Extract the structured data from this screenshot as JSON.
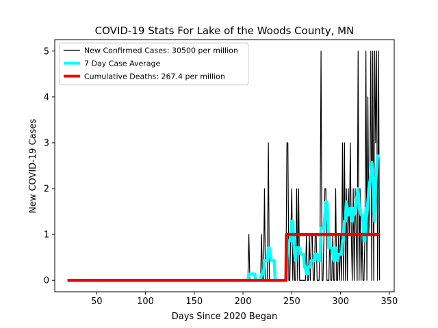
{
  "chart_data": {
    "type": "line",
    "title": "COVID-19 Stats For Lake of the Woods County, MN",
    "xlabel": "Days Since 2020 Began",
    "ylabel": "New COVID-19 Cases",
    "xlim": [
      7,
      355
    ],
    "ylim": [
      -0.25,
      5.25
    ],
    "xticks": [
      50,
      100,
      150,
      200,
      250,
      300,
      350
    ],
    "yticks": [
      0,
      1,
      2,
      3,
      4,
      5
    ],
    "grid": false,
    "legend_position": "top-left",
    "series": [
      {
        "name": "New Confirmed Cases: 30500 per million",
        "color": "#000000",
        "x": [
          205,
          206,
          207,
          208,
          209,
          210,
          211,
          212,
          213,
          214,
          215,
          216,
          217,
          218,
          219,
          220,
          221,
          222,
          223,
          224,
          225,
          226,
          227,
          228,
          229,
          230,
          231,
          232,
          233,
          234,
          235,
          236,
          237,
          238,
          239,
          240,
          241,
          242,
          243,
          244,
          245,
          246,
          247,
          248,
          249,
          250,
          251,
          252,
          253,
          254,
          255,
          256,
          257,
          258,
          259,
          260,
          261,
          262,
          263,
          264,
          265,
          266,
          267,
          268,
          269,
          270,
          271,
          272,
          273,
          274,
          275,
          276,
          277,
          278,
          279,
          280,
          281,
          282,
          283,
          284,
          285,
          286,
          287,
          288,
          289,
          290,
          291,
          292,
          293,
          294,
          295,
          296,
          297,
          298,
          299,
          300,
          301,
          302,
          303,
          304,
          305,
          306,
          307,
          308,
          309,
          310,
          311,
          312,
          313,
          314,
          315,
          316,
          317,
          318,
          319,
          320,
          321,
          322,
          323,
          324,
          325,
          326,
          327,
          328,
          329,
          330,
          331,
          332,
          333,
          334,
          335,
          336,
          337,
          338,
          339,
          340
        ],
        "y": [
          0,
          1,
          0,
          0,
          0,
          0,
          0,
          0,
          0,
          0,
          0,
          0,
          0,
          0,
          1,
          0,
          0,
          2,
          0,
          0,
          0,
          3,
          0,
          0,
          0,
          0,
          0,
          0,
          0,
          0,
          0,
          0,
          0,
          0,
          0,
          0,
          0,
          0,
          0,
          0,
          3,
          3,
          0,
          0,
          1,
          2,
          0,
          1,
          0,
          0,
          2,
          0,
          2,
          0,
          0,
          0,
          0,
          0,
          0,
          0,
          1,
          0,
          0,
          1,
          0,
          1,
          1,
          0,
          0,
          1,
          1,
          0,
          0,
          0,
          1,
          5,
          0,
          0,
          1,
          2,
          2,
          0,
          0,
          0,
          1,
          0,
          0,
          1,
          0,
          0,
          2,
          0,
          0,
          1,
          0,
          1,
          0,
          3,
          0,
          3,
          0,
          2,
          0,
          2,
          1,
          3,
          1,
          0,
          2,
          0,
          2,
          1,
          0,
          5,
          0,
          2,
          0,
          1,
          0,
          0,
          1,
          5,
          0,
          4,
          1,
          2,
          5,
          0,
          5,
          0,
          5,
          3,
          5,
          0,
          5,
          0
        ]
      },
      {
        "name": "7 Day Case Average",
        "color": "#00ffff",
        "x": [
          205,
          206,
          207,
          208,
          209,
          210,
          211,
          212,
          213,
          214,
          215,
          216,
          217,
          218,
          219,
          220,
          221,
          222,
          223,
          224,
          225,
          226,
          227,
          228,
          229,
          230,
          231,
          232,
          233,
          234,
          235,
          236,
          237,
          238,
          239,
          240,
          241,
          242,
          243,
          244,
          245,
          246,
          247,
          248,
          249,
          250,
          251,
          252,
          253,
          254,
          255,
          256,
          257,
          258,
          259,
          260,
          261,
          262,
          263,
          264,
          265,
          266,
          267,
          268,
          269,
          270,
          271,
          272,
          273,
          274,
          275,
          276,
          277,
          278,
          279,
          280,
          281,
          282,
          283,
          284,
          285,
          286,
          287,
          288,
          289,
          290,
          291,
          292,
          293,
          294,
          295,
          296,
          297,
          298,
          299,
          300,
          301,
          302,
          303,
          304,
          305,
          306,
          307,
          308,
          309,
          310,
          311,
          312,
          313,
          314,
          315,
          316,
          317,
          318,
          319,
          320,
          321,
          322,
          323,
          324,
          325,
          326,
          327,
          328,
          329,
          330,
          331,
          332,
          333,
          334,
          335,
          336,
          337,
          338,
          339,
          340
        ],
        "y": [
          0,
          0.14,
          0.14,
          0.14,
          0.14,
          0.14,
          0.14,
          0.14,
          0,
          0,
          0,
          0,
          0,
          0,
          0.14,
          0.14,
          0.14,
          0.43,
          0.43,
          0.43,
          0.43,
          0.71,
          0.71,
          0.57,
          0.43,
          0.43,
          0.43,
          0.43,
          0,
          0,
          0,
          0,
          0,
          0,
          0,
          0,
          0,
          0,
          0,
          0,
          0.43,
          0.86,
          0.86,
          0.86,
          1.0,
          1.29,
          1.29,
          0.86,
          0.57,
          0.43,
          0.71,
          0.71,
          0.71,
          0.71,
          0.57,
          0.57,
          0.57,
          0.57,
          0.29,
          0.29,
          0.14,
          0.14,
          0.29,
          0.29,
          0.29,
          0.43,
          0.43,
          0.43,
          0.43,
          0.57,
          0.57,
          0.57,
          0.43,
          0.43,
          0.43,
          1.14,
          1.14,
          1.14,
          1.14,
          1.43,
          1.71,
          1.71,
          1.29,
          0.71,
          0.71,
          0.71,
          0.71,
          0.57,
          0.43,
          0.57,
          0.71,
          0.57,
          0.43,
          0.57,
          0.57,
          0.57,
          0.57,
          0.86,
          0.86,
          1.29,
          1.29,
          1.71,
          1.57,
          1.43,
          1.43,
          1.57,
          1.43,
          1.29,
          1.57,
          1.43,
          1.57,
          1.71,
          1.86,
          2.0,
          1.57,
          1.57,
          1.43,
          1.43,
          1.29,
          0.86,
          0.86,
          1.57,
          1.43,
          1.71,
          2.0,
          2.14,
          2.29,
          2.57,
          2.43,
          1.57,
          1.29,
          2.14,
          2.43,
          2.71,
          2.71,
          2.71
        ]
      },
      {
        "name": "Cumulative Deaths: 267.4 per million",
        "color": "#ee0000",
        "x": [
          20,
          244,
          244.5,
          340
        ],
        "y": [
          0,
          0,
          1,
          1
        ]
      }
    ]
  }
}
